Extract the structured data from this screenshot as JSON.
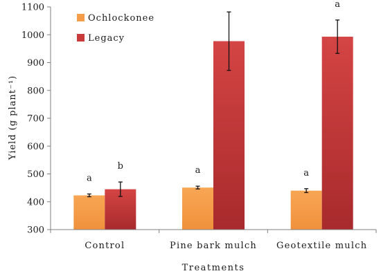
{
  "chart_data": {
    "type": "bar",
    "title": "",
    "xlabel": "Treatments",
    "ylabel": "Yield (g plant⁻¹)",
    "ylim": [
      300,
      1100
    ],
    "yticks": [
      300,
      400,
      500,
      600,
      700,
      800,
      900,
      1000,
      1100
    ],
    "grid": false,
    "legend_position": "top-left",
    "categories": [
      "Control",
      "Pine bark mulch",
      "Geotextile mulch"
    ],
    "series": [
      {
        "name": "Ochlockonee",
        "color": "#f59c48",
        "values": [
          423,
          451,
          440
        ],
        "errors": [
          5,
          5,
          7
        ],
        "labels": [
          "a",
          "a",
          "a"
        ]
      },
      {
        "name": "Legacy",
        "color": "#c93a3b",
        "values": [
          445,
          977,
          993
        ],
        "errors": [
          26,
          105,
          60
        ],
        "labels": [
          "b",
          "a",
          "a"
        ]
      }
    ]
  }
}
